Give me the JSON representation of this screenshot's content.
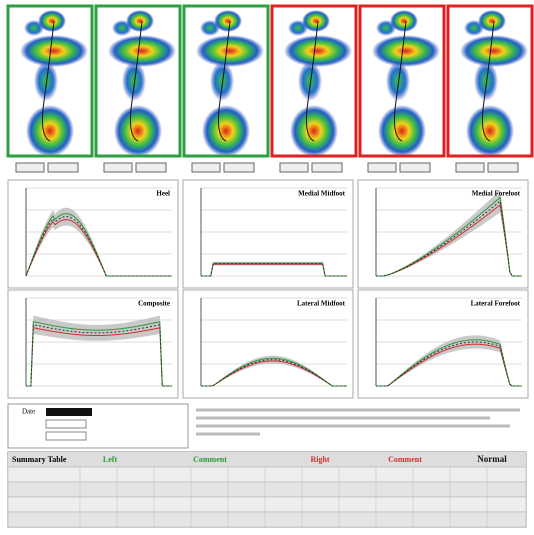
{
  "panels": {
    "titles": [
      "Heel",
      "Medial Midfoot",
      "Medial Forefoot",
      "Composite",
      "Lateral Midfoot",
      "Lateral Forefoot"
    ]
  },
  "info": {
    "date_label": "Date"
  },
  "summary_table": {
    "title": "Summary Table",
    "headers": [
      "Left",
      "Comment",
      "Right",
      "Comment",
      "Normal"
    ]
  }
}
